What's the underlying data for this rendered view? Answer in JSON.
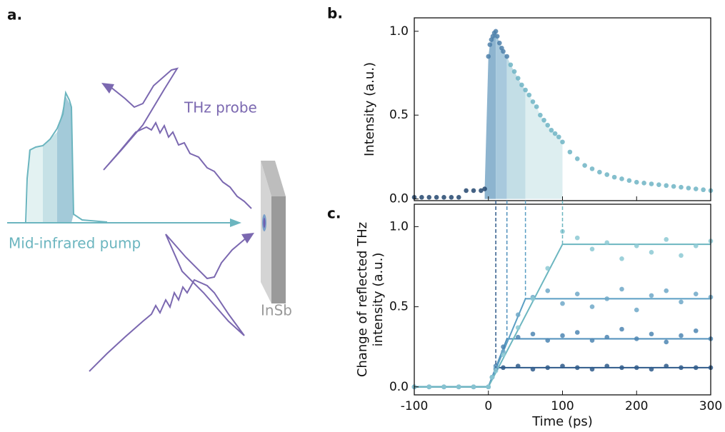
{
  "panel_labels": {
    "a": "a.",
    "b": "b.",
    "c": "c."
  },
  "diagram": {
    "probe_label": "THz probe",
    "pump_label": "Mid-infrared pump",
    "sample_label": "InSb"
  },
  "chart_data": [
    {
      "type": "scatter",
      "ylabel": "Intensity (a.u.)",
      "xlim": [
        -100,
        300
      ],
      "xticks": [
        -100,
        0,
        100,
        200,
        300
      ],
      "ylim": [
        -0.01,
        1.08
      ],
      "yticks": [
        {
          "value": 0,
          "label": "0.0"
        },
        {
          "value": 0.5,
          "label": "0.5"
        },
        {
          "value": 1,
          "label": "1.0"
        }
      ],
      "shaded": [
        {
          "xlim": [
            -5,
            10
          ],
          "color": "#8db4cf"
        },
        {
          "xlim": [
            10,
            25
          ],
          "color": "#a8c9dd"
        },
        {
          "xlim": [
            25,
            50
          ],
          "color": "#c3dee6"
        },
        {
          "xlim": [
            50,
            100
          ],
          "color": "#ddeef0"
        }
      ],
      "series": [
        {
          "color": "#23466f",
          "x": [
            -100,
            -90,
            -80,
            -70,
            -60,
            -50,
            -40,
            -30,
            -20,
            -10,
            -5
          ],
          "y": [
            0.01,
            0.01,
            0.01,
            0.01,
            0.01,
            0.01,
            0.01,
            0.05,
            0.05,
            0.05,
            0.06
          ]
        },
        {
          "color": "#4e80aa",
          "x": [
            0,
            2,
            4,
            6,
            8,
            10,
            12,
            15,
            18,
            20,
            25
          ],
          "y": [
            0.85,
            0.92,
            0.95,
            0.97,
            0.99,
            1.0,
            0.97,
            0.93,
            0.9,
            0.88,
            0.85
          ]
        },
        {
          "color": "#6fb4c4",
          "x": [
            30,
            35,
            40,
            45,
            50,
            55,
            60,
            65,
            70,
            75,
            80,
            85,
            90,
            95,
            100,
            110,
            120,
            130,
            140,
            150,
            160,
            170,
            180,
            190,
            200,
            210,
            220,
            230,
            240,
            250,
            260,
            270,
            280,
            290,
            300
          ],
          "y": [
            0.8,
            0.76,
            0.72,
            0.68,
            0.65,
            0.62,
            0.58,
            0.55,
            0.5,
            0.47,
            0.44,
            0.41,
            0.39,
            0.37,
            0.34,
            0.28,
            0.24,
            0.2,
            0.18,
            0.16,
            0.145,
            0.13,
            0.12,
            0.11,
            0.1,
            0.095,
            0.09,
            0.085,
            0.08,
            0.075,
            0.07,
            0.065,
            0.06,
            0.055,
            0.05
          ]
        }
      ]
    },
    {
      "type": "scatter",
      "xlabel": "Time (ps)",
      "ylabel": [
        "Change of reflected THz",
        "intensity (a.u.)"
      ],
      "xlim": [
        -100,
        300
      ],
      "xticks": [
        -100,
        0,
        100,
        200,
        300
      ],
      "ylim": [
        -0.05,
        1.14
      ],
      "yticks": [
        {
          "value": 0,
          "label": "0.0"
        },
        {
          "value": 0.5,
          "label": "0.5"
        },
        {
          "value": 1,
          "label": "1.0"
        }
      ],
      "series": [
        {
          "color": "#2e5a8a",
          "line_color": "#2e5a8a",
          "x": [
            -100,
            -80,
            -60,
            -40,
            -20,
            0,
            5,
            10,
            20,
            40,
            60,
            80,
            100,
            120,
            140,
            160,
            180,
            200,
            220,
            240,
            260,
            280,
            300
          ],
          "y": [
            0,
            0,
            0,
            0,
            0,
            0,
            0.06,
            0.11,
            0.12,
            0.13,
            0.11,
            0.12,
            0.13,
            0.12,
            0.11,
            0.13,
            0.12,
            0.12,
            0.11,
            0.13,
            0.12,
            0.12,
            0.12
          ],
          "fit_x": [
            -100,
            0,
            10,
            300
          ],
          "fit_y": [
            0,
            0,
            0.12,
            0.12
          ]
        },
        {
          "color": "#4d86b3",
          "line_color": "#4f8fbb",
          "x": [
            -100,
            -80,
            -60,
            -40,
            -20,
            0,
            5,
            10,
            20,
            40,
            60,
            80,
            100,
            120,
            140,
            160,
            180,
            200,
            220,
            240,
            260,
            280,
            300
          ],
          "y": [
            0,
            0,
            0,
            0,
            0,
            0,
            0.06,
            0.13,
            0.25,
            0.31,
            0.33,
            0.29,
            0.32,
            0.34,
            0.29,
            0.31,
            0.36,
            0.3,
            0.33,
            0.28,
            0.32,
            0.35,
            0.3
          ],
          "fit_x": [
            -100,
            0,
            25,
            300
          ],
          "fit_y": [
            0,
            0,
            0.3,
            0.3
          ]
        },
        {
          "color": "#6ea8c8",
          "line_color": "#5b9fc4",
          "x": [
            -100,
            -80,
            -60,
            -40,
            -20,
            0,
            5,
            10,
            20,
            40,
            60,
            80,
            100,
            120,
            140,
            160,
            180,
            200,
            220,
            240,
            260,
            280,
            300
          ],
          "y": [
            0,
            0,
            0,
            0,
            0,
            0,
            0.06,
            0.12,
            0.22,
            0.45,
            0.56,
            0.6,
            0.52,
            0.58,
            0.5,
            0.55,
            0.61,
            0.48,
            0.57,
            0.6,
            0.53,
            0.58,
            0.56
          ],
          "fit_x": [
            -100,
            0,
            50,
            300
          ],
          "fit_y": [
            0,
            0,
            0.55,
            0.55
          ]
        },
        {
          "color": "#8cc9d3",
          "line_color": "#6cb6c0",
          "x": [
            -100,
            -80,
            -60,
            -40,
            -20,
            0,
            5,
            10,
            20,
            40,
            60,
            80,
            100,
            120,
            140,
            160,
            180,
            200,
            220,
            240,
            260,
            280,
            300
          ],
          "y": [
            0,
            0,
            0,
            0,
            0,
            0,
            0.06,
            0.1,
            0.2,
            0.37,
            0.55,
            0.74,
            0.97,
            0.93,
            0.86,
            0.9,
            0.8,
            0.88,
            0.84,
            0.92,
            0.82,
            0.88,
            0.91
          ],
          "fit_x": [
            -100,
            0,
            100,
            300
          ],
          "fit_y": [
            0,
            0,
            0.89,
            0.89
          ]
        }
      ]
    }
  ]
}
